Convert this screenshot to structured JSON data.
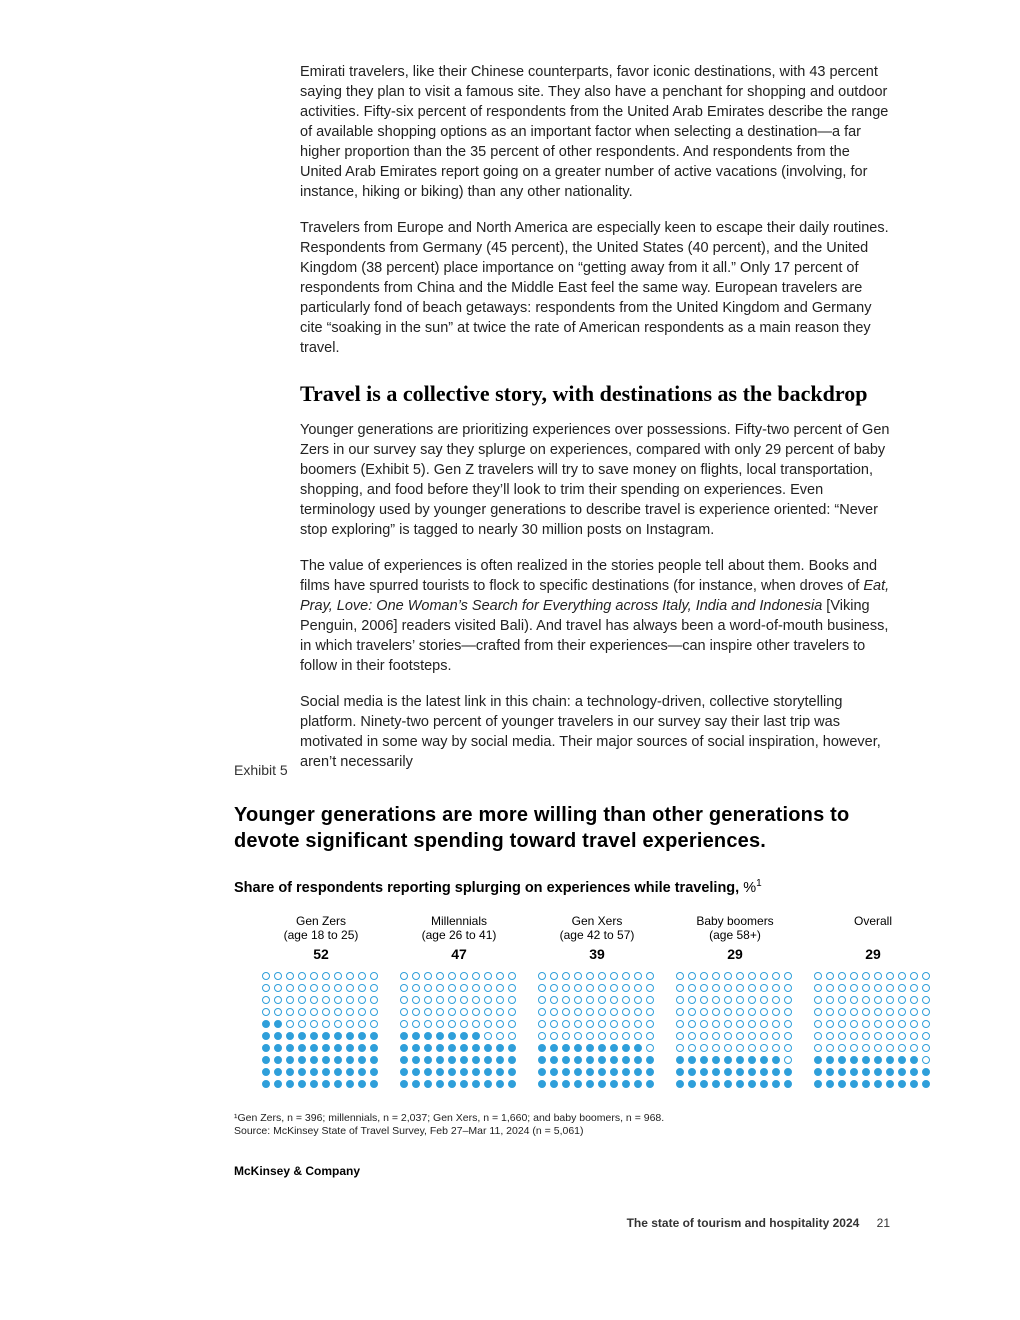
{
  "body": {
    "para1": "Emirati travelers, like their Chinese counterparts, favor iconic destinations, with 43 percent saying they plan to visit a famous site. They also have a penchant for shopping and outdoor activities. Fifty-six percent of respondents from the United Arab Emirates describe the range of available shopping options as an important factor when selecting a destination—a far higher proportion than the 35 percent of other respondents. And respondents from the United Arab Emirates report going on a greater number of active vacations (involving, for instance, hiking or biking) than any other nationality.",
    "para2": "Travelers from Europe and North America are especially keen to escape their daily routines. Respondents from Germany (45 percent), the United States (40 percent), and the United Kingdom (38 percent) place importance on “getting away from it all.” Only 17 percent of respondents from China and the Middle East feel the same way. European travelers are particularly fond of beach getaways: respondents from the United Kingdom and Germany cite “soaking in the sun” at twice the rate of American respondents as a main reason they travel.",
    "subhead": "Travel is a collective story, with destinations as the backdrop",
    "para3": "Younger generations are prioritizing experiences over possessions. Fifty-two percent of Gen Zers in our survey say they splurge on experiences, compared with only 29 percent of baby boomers (Exhibit 5). Gen Z travelers will try to save money on flights, local transportation, shopping, and food before they’ll look to trim their spending on experiences. Even terminology used by younger generations to describe travel is experience oriented: “Never stop exploring” is tagged to nearly 30 million posts on Instagram.",
    "para4_pre": "The value of experiences is often realized in the stories people tell about them. Books and films have spurred tourists to flock to specific destinations (for instance, when droves of ",
    "para4_italic": "Eat, Pray, Love: One Woman’s Search for Everything across Italy, India and Indonesia",
    "para4_post": " [Viking Penguin, 2006] readers visited Bali). And travel has always been a word-of-mouth business, in which travelers’ stories—crafted from their experiences—can inspire other travelers to follow in their footsteps.",
    "para5": "Social media is the latest link in this chain: a technology-driven, collective storytelling platform. Ninety-two percent of younger travelers in our survey say their last trip was motivated in some way by social media. Their major sources of social inspiration, however, aren’t necessarily"
  },
  "exhibit": {
    "label": "Exhibit 5",
    "title": "Younger generations are more willing than other generations to devote significant spending toward travel experiences.",
    "subtitle_bold": "Share of respondents reporting splurging on experiences while traveling,",
    "subtitle_unit": " %",
    "subtitle_sup": "1",
    "chart": {
      "type": "dot-matrix",
      "grid_cols": 10,
      "grid_rows": 10,
      "dot_filled_color": "#2f9fda",
      "dot_empty_border": "#2f9fda",
      "background_color": "#ffffff",
      "groups": [
        {
          "name": "Gen Zers",
          "age": "(age 18 to 25)",
          "value": 52
        },
        {
          "name": "Millennials",
          "age": "(age 26 to 41)",
          "value": 47
        },
        {
          "name": "Gen Xers",
          "age": "(age 42 to 57)",
          "value": 39
        },
        {
          "name": "Baby boomers",
          "age": "(age 58+)",
          "value": 29
        },
        {
          "name": "Overall",
          "age": "",
          "value": 29
        }
      ]
    },
    "footnote1": "¹Gen Zers, n = 396; millennials, n = 2,037; Gen Xers, n = 1,660; and baby boomers, n = 968.",
    "footnote2": "Source: McKinsey State of Travel Survey, Feb 27–Mar 11, 2024 (n = 5,061)",
    "company": "McKinsey & Company"
  },
  "footer": {
    "title": "The state of tourism and hospitality 2024",
    "page": "21"
  }
}
